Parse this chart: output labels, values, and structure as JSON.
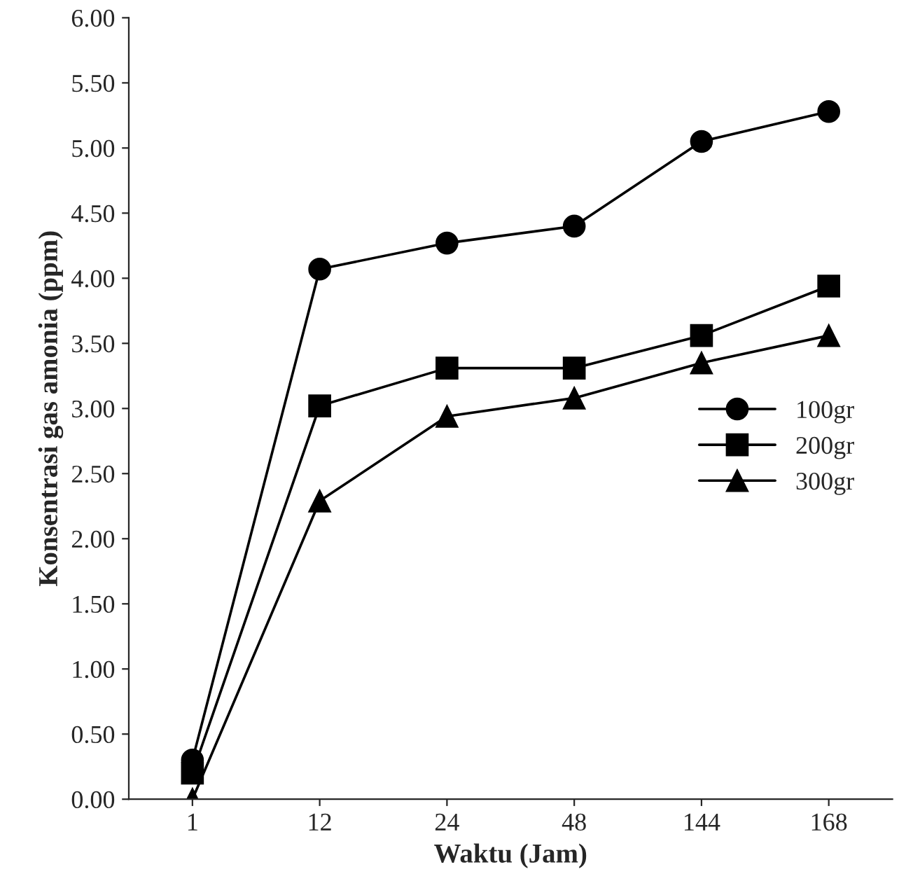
{
  "chart_data": {
    "type": "line",
    "xlabel": "Waktu (Jam)",
    "ylabel": "Konsentrasi gas amonia (ppm)",
    "categories": [
      "1",
      "12",
      "24",
      "48",
      "144",
      "168"
    ],
    "series": [
      {
        "name": "100gr",
        "color": "#000000",
        "marker": "circle",
        "values": [
          0.3,
          4.07,
          4.27,
          4.4,
          5.05,
          5.28
        ]
      },
      {
        "name": "200gr",
        "color": "#000000",
        "marker": "square",
        "values": [
          0.2,
          3.02,
          3.31,
          3.31,
          3.56,
          3.94
        ]
      },
      {
        "name": "300gr",
        "color": "#000000",
        "marker": "triangle",
        "values": [
          0.0,
          2.29,
          2.94,
          3.08,
          3.35,
          3.56
        ]
      }
    ],
    "ylim": [
      0,
      6
    ],
    "yticks": [
      {
        "value": 0,
        "label": "0.00"
      },
      {
        "value": 0.5,
        "label": "0.50"
      },
      {
        "value": 1,
        "label": "1.00"
      },
      {
        "value": 1.5,
        "label": "1.50"
      },
      {
        "value": 2,
        "label": "2.00"
      },
      {
        "value": 2.5,
        "label": "2.50"
      },
      {
        "value": 3,
        "label": "3.00"
      },
      {
        "value": 3.5,
        "label": "3.50"
      },
      {
        "value": 4,
        "label": "4.00"
      },
      {
        "value": 4.5,
        "label": "4.50"
      },
      {
        "value": 5,
        "label": "5.00"
      },
      {
        "value": 5.5,
        "label": "5.50"
      },
      {
        "value": 6,
        "label": "6.00"
      }
    ],
    "grid": false,
    "legend": "right",
    "line_style": "solid"
  }
}
